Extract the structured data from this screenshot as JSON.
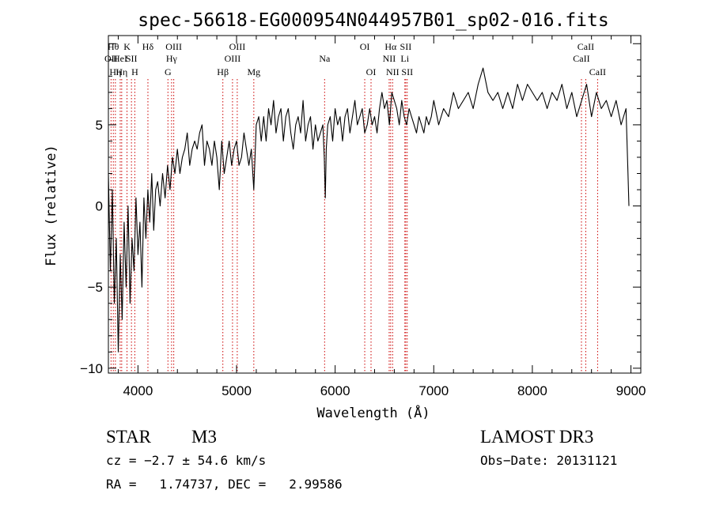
{
  "chart_data": {
    "type": "line",
    "title": "spec-56618-EG000954N044957B01_sp02-016.fits",
    "xlabel": "Wavelength (Å)",
    "ylabel": "Flux (relative)",
    "xlim": [
      3700,
      9100
    ],
    "ylim": [
      -10.3,
      10.5
    ],
    "xticks": [
      4000,
      5000,
      6000,
      7000,
      8000,
      9000
    ],
    "yticks": [
      -10,
      -5,
      0,
      5
    ],
    "grid": false,
    "series": [
      {
        "x": [
          3700,
          3720,
          3740,
          3760,
          3780,
          3800,
          3820,
          3840,
          3860,
          3880,
          3900,
          3920,
          3940,
          3960,
          3980,
          4000,
          4020,
          4040,
          4060,
          4080,
          4100,
          4120,
          4140,
          4160,
          4180,
          4200,
          4225,
          4250,
          4275,
          4300,
          4325,
          4350,
          4375,
          4400,
          4425,
          4450,
          4475,
          4500,
          4525,
          4550,
          4575,
          4600,
          4625,
          4650,
          4675,
          4700,
          4725,
          4750,
          4775,
          4800,
          4825,
          4850,
          4875,
          4900,
          4925,
          4950,
          4975,
          5000,
          5025,
          5050,
          5075,
          5100,
          5125,
          5150,
          5175,
          5200,
          5225,
          5250,
          5275,
          5300,
          5325,
          5350,
          5375,
          5400,
          5425,
          5450,
          5475,
          5500,
          5525,
          5550,
          5575,
          5600,
          5625,
          5650,
          5675,
          5700,
          5725,
          5750,
          5775,
          5800,
          5825,
          5850,
          5875,
          5890,
          5900,
          5910,
          5925,
          5950,
          5975,
          6000,
          6025,
          6050,
          6075,
          6100,
          6125,
          6150,
          6175,
          6200,
          6225,
          6250,
          6275,
          6300,
          6325,
          6350,
          6375,
          6400,
          6425,
          6450,
          6475,
          6500,
          6525,
          6550,
          6575,
          6600,
          6625,
          6650,
          6675,
          6700,
          6725,
          6750,
          6775,
          6800,
          6825,
          6850,
          6875,
          6900,
          6925,
          6950,
          6975,
          7000,
          7050,
          7100,
          7150,
          7200,
          7250,
          7300,
          7350,
          7400,
          7450,
          7500,
          7550,
          7600,
          7650,
          7700,
          7750,
          7800,
          7850,
          7900,
          7950,
          8000,
          8050,
          8100,
          8150,
          8200,
          8250,
          8300,
          8350,
          8400,
          8450,
          8500,
          8550,
          8600,
          8650,
          8700,
          8750,
          8800,
          8850,
          8900,
          8950,
          8970,
          8980
        ],
        "y": [
          2.0,
          -4.0,
          1.0,
          -6.0,
          -2.0,
          -9.0,
          -3.0,
          -7.0,
          -1.0,
          -5.0,
          0.0,
          -6.0,
          -2.0,
          -4.0,
          0.5,
          -3.0,
          -1.0,
          -5.0,
          0.5,
          -2.0,
          1.0,
          -1.0,
          2.0,
          -1.5,
          1.0,
          1.5,
          0.0,
          2.0,
          0.5,
          2.5,
          1.0,
          3.0,
          2.0,
          3.5,
          2.0,
          3.0,
          3.5,
          4.5,
          2.5,
          3.5,
          4.0,
          3.5,
          4.5,
          5.0,
          2.5,
          4.0,
          3.5,
          2.5,
          4.0,
          3.0,
          1.0,
          4.0,
          2.0,
          3.0,
          4.0,
          2.5,
          3.5,
          4.0,
          2.5,
          3.0,
          4.5,
          3.5,
          2.5,
          3.5,
          1.0,
          5.0,
          5.5,
          4.0,
          5.5,
          4.0,
          6.0,
          5.0,
          6.5,
          4.5,
          5.5,
          6.0,
          4.0,
          5.5,
          6.0,
          4.5,
          3.5,
          5.0,
          5.5,
          4.5,
          6.5,
          4.0,
          5.0,
          5.5,
          3.5,
          5.0,
          4.0,
          4.5,
          5.0,
          3.0,
          0.5,
          3.5,
          5.0,
          5.5,
          4.0,
          6.0,
          5.0,
          5.5,
          4.0,
          5.5,
          6.0,
          4.5,
          5.5,
          6.5,
          5.0,
          5.5,
          6.0,
          4.5,
          5.0,
          6.0,
          5.0,
          5.5,
          4.5,
          6.0,
          7.0,
          6.0,
          6.5,
          5.0,
          7.0,
          6.5,
          6.0,
          5.0,
          6.5,
          5.5,
          5.0,
          6.0,
          5.5,
          5.0,
          4.5,
          5.5,
          5.0,
          4.5,
          5.5,
          5.0,
          5.5,
          6.5,
          5.0,
          6.0,
          5.5,
          7.0,
          6.0,
          6.5,
          7.0,
          6.0,
          7.5,
          8.5,
          7.0,
          6.5,
          7.0,
          6.0,
          7.0,
          6.0,
          7.5,
          6.5,
          7.5,
          7.0,
          6.5,
          7.0,
          6.0,
          7.0,
          6.5,
          7.5,
          6.0,
          7.0,
          5.5,
          6.5,
          7.5,
          5.5,
          7.0,
          6.0,
          6.5,
          5.5,
          6.5,
          5.0,
          6.0,
          2.0,
          0.0
        ]
      }
    ],
    "lines": [
      {
        "x": 3727,
        "label": "OII",
        "row": 2
      },
      {
        "x": 3750,
        "label": "Hθ",
        "row": 1
      },
      {
        "x": 3771,
        "label": "Hη",
        "row": 3
      },
      {
        "x": 3820,
        "label": "HeI",
        "row": 2
      },
      {
        "x": 3835,
        "label": "Hη",
        "row": 3
      },
      {
        "x": 3889,
        "label": "K",
        "row": 1
      },
      {
        "x": 3934,
        "label": "SII",
        "row": 2
      },
      {
        "x": 3968,
        "label": "H",
        "row": 3
      },
      {
        "x": 4101,
        "label": "Hδ",
        "row": 1
      },
      {
        "x": 4304,
        "label": "G",
        "row": 3
      },
      {
        "x": 4341,
        "label": "Hγ",
        "row": 2
      },
      {
        "x": 4363,
        "label": "OIII",
        "row": 1
      },
      {
        "x": 4861,
        "label": "Hβ",
        "row": 3
      },
      {
        "x": 4959,
        "label": "OIII",
        "row": 2
      },
      {
        "x": 5007,
        "label": "OIII",
        "row": 1
      },
      {
        "x": 5175,
        "label": "Mg",
        "row": 3
      },
      {
        "x": 5893,
        "label": "Na",
        "row": 2
      },
      {
        "x": 6300,
        "label": "OI",
        "row": 1
      },
      {
        "x": 6364,
        "label": "OI",
        "row": 3
      },
      {
        "x": 6548,
        "label": "NII",
        "row": 2
      },
      {
        "x": 6563,
        "label": "Hα",
        "row": 1
      },
      {
        "x": 6583,
        "label": "NII",
        "row": 3
      },
      {
        "x": 6707,
        "label": "Li",
        "row": 2
      },
      {
        "x": 6716,
        "label": "SII",
        "row": 1
      },
      {
        "x": 6731,
        "label": "SII",
        "row": 3
      },
      {
        "x": 8498,
        "label": "CaII",
        "row": 2
      },
      {
        "x": 8542,
        "label": "CaII",
        "row": 1
      },
      {
        "x": 8662,
        "label": "CaII",
        "row": 3
      }
    ]
  },
  "info": {
    "class": "STAR",
    "subclass": "M3",
    "survey": "LAMOST DR3",
    "cz": "cz = −2.7 ± 54.6 km/s",
    "obs_date": "Obs−Date: 20131121",
    "radec": "RA =   1.74737, DEC =   2.99586"
  },
  "colors": {
    "spectrum": "#000000",
    "line_markers": "#cc0000",
    "axes": "#000000"
  }
}
